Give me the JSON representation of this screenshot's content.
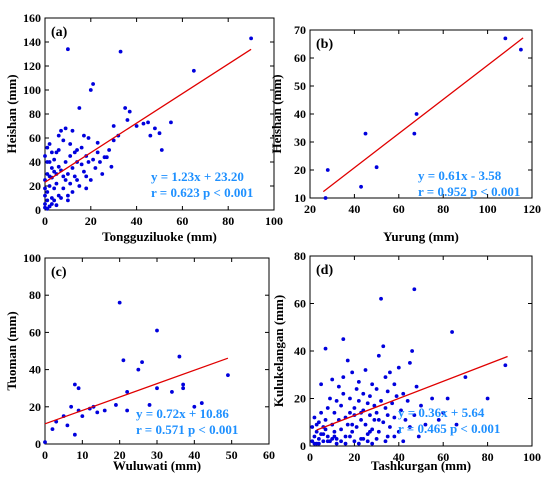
{
  "colors": {
    "points": "#0000dd",
    "fit_line": "#e00000",
    "stats_text": "#1e90ff",
    "axes": "#000000"
  },
  "chart_data": [
    {
      "type": "scatter",
      "panel_label": "(a)",
      "xlabel": "Tongguziluoke (mm)",
      "ylabel": "Heishan (mm)",
      "xlim": [
        0,
        100
      ],
      "ylim": [
        0,
        160
      ],
      "xticks": [
        0,
        20,
        40,
        60,
        80,
        100
      ],
      "yticks": [
        0,
        20,
        40,
        60,
        80,
        100,
        120,
        140,
        160
      ],
      "xtick_labels": [
        "0",
        "20",
        "40",
        "60",
        "80",
        "100"
      ],
      "ytick_labels": [
        "0",
        "20",
        "40",
        "60",
        "80",
        "100",
        "120",
        "140",
        "160"
      ],
      "equation": "y = 1.23x + 23.20",
      "stats": "r = 0.623 p < 0.001",
      "fit": {
        "slope": 1.23,
        "intercept": 23.2
      },
      "points": [
        [
          0,
          2
        ],
        [
          0,
          5
        ],
        [
          1,
          1
        ],
        [
          1,
          8
        ],
        [
          0,
          12
        ],
        [
          2,
          3
        ],
        [
          1,
          15
        ],
        [
          2,
          20
        ],
        [
          3,
          10
        ],
        [
          0,
          25
        ],
        [
          1,
          30
        ],
        [
          2,
          28
        ],
        [
          3,
          35
        ],
        [
          1,
          40
        ],
        [
          0,
          45
        ],
        [
          4,
          18
        ],
        [
          5,
          22
        ],
        [
          3,
          27
        ],
        [
          5,
          30
        ],
        [
          4,
          42
        ],
        [
          6,
          50
        ],
        [
          2,
          55
        ],
        [
          5,
          48
        ],
        [
          7,
          33
        ],
        [
          6,
          62
        ],
        [
          8,
          58
        ],
        [
          7,
          66
        ],
        [
          9,
          25
        ],
        [
          10,
          30
        ],
        [
          9,
          40
        ],
        [
          10,
          12
        ],
        [
          11,
          45
        ],
        [
          12,
          35
        ],
        [
          11,
          55
        ],
        [
          13,
          28
        ],
        [
          12,
          66
        ],
        [
          14,
          50
        ],
        [
          15,
          20
        ],
        [
          14,
          40
        ],
        [
          16,
          38
        ],
        [
          17,
          32
        ],
        [
          18,
          45
        ],
        [
          18,
          28
        ],
        [
          19,
          60
        ],
        [
          20,
          100
        ],
        [
          21,
          105
        ],
        [
          22,
          35
        ],
        [
          23,
          48
        ],
        [
          24,
          40
        ],
        [
          26,
          44
        ],
        [
          28,
          50
        ],
        [
          30,
          58
        ],
        [
          30,
          70
        ],
        [
          32,
          62
        ],
        [
          33,
          132
        ],
        [
          35,
          85
        ],
        [
          36,
          75
        ],
        [
          37,
          82
        ],
        [
          40,
          70
        ],
        [
          43,
          72
        ],
        [
          45,
          73
        ],
        [
          46,
          62
        ],
        [
          48,
          68
        ],
        [
          50,
          64
        ],
        [
          51,
          50
        ],
        [
          55,
          73
        ],
        [
          65,
          116
        ],
        [
          90,
          143
        ],
        [
          10,
          134
        ],
        [
          8,
          28
        ],
        [
          6,
          12
        ],
        [
          4,
          8
        ],
        [
          3,
          5
        ],
        [
          5,
          4
        ],
        [
          7,
          10
        ],
        [
          2,
          40
        ],
        [
          3,
          48
        ],
        [
          1,
          52
        ],
        [
          9,
          68
        ],
        [
          13,
          48
        ],
        [
          16,
          52
        ],
        [
          19,
          40
        ],
        [
          21,
          42
        ],
        [
          23,
          56
        ],
        [
          25,
          30
        ],
        [
          27,
          44
        ],
        [
          29,
          36
        ],
        [
          15,
          85
        ],
        [
          17,
          62
        ],
        [
          11,
          22
        ],
        [
          8,
          18
        ],
        [
          6,
          36
        ],
        [
          4,
          32
        ],
        [
          12,
          15
        ],
        [
          14,
          25
        ],
        [
          10,
          8
        ],
        [
          18,
          18
        ],
        [
          20,
          25
        ],
        [
          2,
          3
        ],
        [
          0,
          18
        ]
      ]
    },
    {
      "type": "scatter",
      "panel_label": "(b)",
      "xlabel": "Yurung (mm)",
      "ylabel": "Heishan (mm)",
      "xlim": [
        20,
        120
      ],
      "ylim": [
        10,
        70
      ],
      "xticks": [
        20,
        40,
        60,
        80,
        100,
        120
      ],
      "yticks": [
        10,
        20,
        30,
        40,
        50,
        60,
        70
      ],
      "xtick_labels": [
        "20",
        "40",
        "60",
        "80",
        "100",
        "120"
      ],
      "ytick_labels": [
        "10",
        "20",
        "30",
        "40",
        "50",
        "60",
        "70"
      ],
      "equation": "y = 0.61x - 3.58",
      "stats": "r = 0.952 p < 0.001",
      "fit": {
        "slope": 0.61,
        "intercept": -3.58
      },
      "fit_range": [
        26,
        116
      ],
      "points": [
        [
          27,
          10
        ],
        [
          28,
          20
        ],
        [
          43,
          14
        ],
        [
          45,
          33
        ],
        [
          50,
          21
        ],
        [
          67,
          33
        ],
        [
          68,
          40
        ],
        [
          108,
          67
        ],
        [
          115,
          63
        ]
      ]
    },
    {
      "type": "scatter",
      "panel_label": "(c)",
      "xlabel": "Wuluwati (mm)",
      "ylabel": "Tuoman (mm)",
      "xlim": [
        0,
        60
      ],
      "ylim": [
        0,
        100
      ],
      "xticks": [
        0,
        10,
        20,
        30,
        40,
        50,
        60
      ],
      "yticks": [
        0,
        20,
        40,
        60,
        80,
        100
      ],
      "xtick_labels": [
        "0",
        "10",
        "20",
        "30",
        "40",
        "50",
        "60"
      ],
      "ytick_labels": [
        "0",
        "20",
        "40",
        "60",
        "80",
        "100"
      ],
      "equation": "y = 0.72x + 10.86",
      "stats": "r = 0.571 p < 0.001",
      "fit": {
        "slope": 0.72,
        "intercept": 10.86
      },
      "fit_range": [
        0,
        49
      ],
      "points": [
        [
          0,
          1
        ],
        [
          2,
          8
        ],
        [
          3,
          12
        ],
        [
          5,
          15
        ],
        [
          6,
          10
        ],
        [
          7,
          20
        ],
        [
          8,
          5
        ],
        [
          8,
          32
        ],
        [
          9,
          30
        ],
        [
          9,
          18
        ],
        [
          10,
          15
        ],
        [
          12,
          19
        ],
        [
          13,
          20
        ],
        [
          14,
          17
        ],
        [
          16,
          18
        ],
        [
          19,
          21
        ],
        [
          20,
          76
        ],
        [
          21,
          45
        ],
        [
          22,
          28
        ],
        [
          22,
          18
        ],
        [
          25,
          40
        ],
        [
          26,
          44
        ],
        [
          28,
          21
        ],
        [
          30,
          30
        ],
        [
          30,
          61
        ],
        [
          34,
          28
        ],
        [
          36,
          47
        ],
        [
          37,
          30
        ],
        [
          37,
          32
        ],
        [
          40,
          20
        ],
        [
          42,
          22
        ],
        [
          49,
          37
        ]
      ]
    },
    {
      "type": "scatter",
      "panel_label": "(d)",
      "xlabel": "Tashkurgan (mm)",
      "ylabel": "Kulukelangan (mm)",
      "xlim": [
        0,
        100
      ],
      "ylim": [
        0,
        80
      ],
      "xticks": [
        0,
        20,
        40,
        60,
        80,
        100
      ],
      "yticks": [
        0,
        20,
        40,
        60,
        80
      ],
      "xtick_labels": [
        "0",
        "20",
        "40",
        "60",
        "80",
        "100"
      ],
      "ytick_labels": [
        "0",
        "20",
        "40",
        "60",
        "80"
      ],
      "equation": "y = 0.36x + 5.64",
      "stats": "r = 0.465 p < 0.001",
      "fit": {
        "slope": 0.36,
        "intercept": 5.64
      },
      "fit_range": [
        3,
        89
      ],
      "points": [
        [
          1,
          2
        ],
        [
          1,
          8
        ],
        [
          2,
          4
        ],
        [
          2,
          12
        ],
        [
          3,
          1
        ],
        [
          3,
          6
        ],
        [
          4,
          3
        ],
        [
          4,
          10
        ],
        [
          5,
          5
        ],
        [
          5,
          26
        ],
        [
          5,
          14
        ],
        [
          6,
          2
        ],
        [
          6,
          8
        ],
        [
          7,
          41
        ],
        [
          7,
          11
        ],
        [
          8,
          4
        ],
        [
          8,
          16
        ],
        [
          9,
          20
        ],
        [
          9,
          2
        ],
        [
          10,
          28
        ],
        [
          10,
          9
        ],
        [
          11,
          6
        ],
        [
          11,
          14
        ],
        [
          12,
          19
        ],
        [
          12,
          3
        ],
        [
          13,
          25
        ],
        [
          13,
          11
        ],
        [
          14,
          7
        ],
        [
          14,
          17
        ],
        [
          15,
          45
        ],
        [
          15,
          22
        ],
        [
          15,
          29
        ],
        [
          16,
          4
        ],
        [
          16,
          12
        ],
        [
          17,
          36
        ],
        [
          17,
          9
        ],
        [
          18,
          14
        ],
        [
          18,
          20
        ],
        [
          19,
          6
        ],
        [
          19,
          31
        ],
        [
          20,
          13
        ],
        [
          20,
          16
        ],
        [
          21,
          24
        ],
        [
          21,
          8
        ],
        [
          22,
          27
        ],
        [
          22,
          19
        ],
        [
          23,
          11
        ],
        [
          23,
          3
        ],
        [
          24,
          15
        ],
        [
          24,
          22
        ],
        [
          25,
          32
        ],
        [
          25,
          9
        ],
        [
          26,
          18
        ],
        [
          26,
          5
        ],
        [
          27,
          21
        ],
        [
          27,
          13
        ],
        [
          28,
          26
        ],
        [
          28,
          7
        ],
        [
          29,
          17
        ],
        [
          29,
          11
        ],
        [
          30,
          14
        ],
        [
          30,
          24
        ],
        [
          31,
          38
        ],
        [
          31,
          6
        ],
        [
          32,
          62
        ],
        [
          32,
          19
        ],
        [
          33,
          42
        ],
        [
          33,
          10
        ],
        [
          34,
          29
        ],
        [
          34,
          16
        ],
        [
          35,
          13
        ],
        [
          35,
          23
        ],
        [
          36,
          8
        ],
        [
          36,
          31
        ],
        [
          37,
          18
        ],
        [
          38,
          12
        ],
        [
          38,
          26
        ],
        [
          39,
          21
        ],
        [
          40,
          33
        ],
        [
          40,
          6
        ],
        [
          41,
          15
        ],
        [
          42,
          22
        ],
        [
          43,
          11
        ],
        [
          44,
          19
        ],
        [
          45,
          35
        ],
        [
          45,
          8
        ],
        [
          46,
          40
        ],
        [
          47,
          13
        ],
        [
          47,
          66
        ],
        [
          48,
          25
        ],
        [
          49,
          4
        ],
        [
          50,
          17
        ],
        [
          52,
          9
        ],
        [
          55,
          20
        ],
        [
          58,
          11
        ],
        [
          60,
          14
        ],
        [
          62,
          20
        ],
        [
          64,
          48
        ],
        [
          66,
          9
        ],
        [
          70,
          29
        ],
        [
          80,
          20
        ],
        [
          88,
          34
        ],
        [
          2,
          1
        ],
        [
          4,
          1
        ],
        [
          6,
          5
        ],
        [
          8,
          2
        ],
        [
          10,
          3
        ],
        [
          12,
          1
        ],
        [
          14,
          2
        ],
        [
          16,
          1
        ],
        [
          18,
          4
        ],
        [
          20,
          2
        ],
        [
          22,
          1
        ],
        [
          24,
          3
        ],
        [
          26,
          2
        ],
        [
          28,
          1
        ],
        [
          30,
          3
        ],
        [
          34,
          2
        ],
        [
          38,
          4
        ],
        [
          42,
          2
        ],
        [
          3,
          9
        ],
        [
          7,
          7
        ],
        [
          11,
          4
        ],
        [
          19,
          9
        ],
        [
          23,
          14
        ],
        [
          27,
          6
        ],
        [
          31,
          11
        ],
        [
          35,
          4
        ]
      ]
    }
  ]
}
